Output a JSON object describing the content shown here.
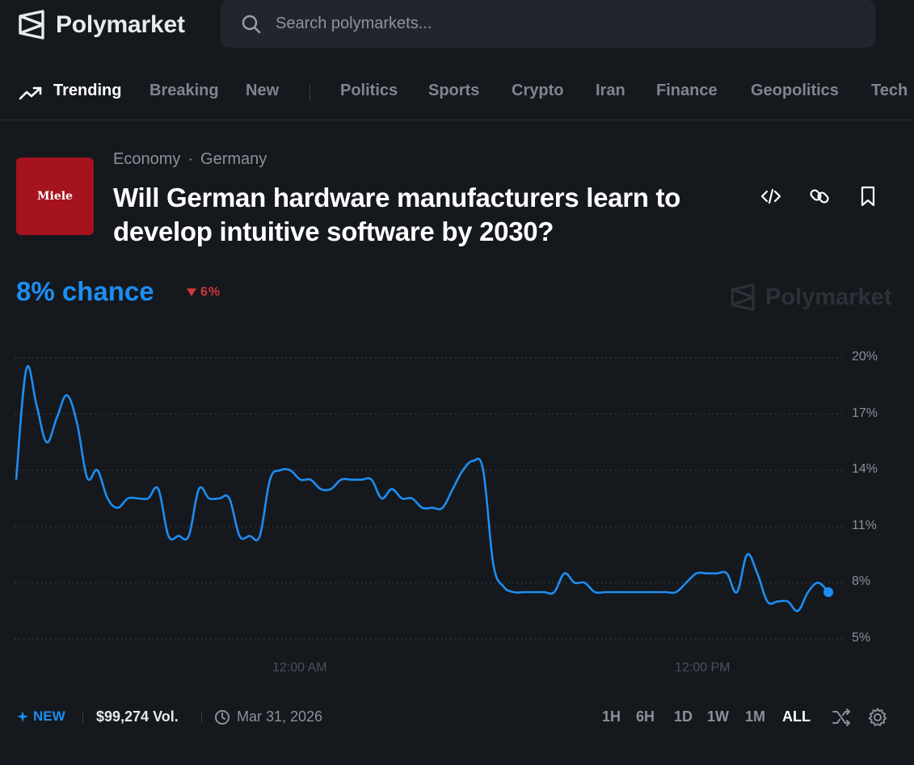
{
  "brand": {
    "name": "Polymarket"
  },
  "search": {
    "placeholder": "Search polymarkets..."
  },
  "nav": {
    "items": [
      {
        "label": "Trending",
        "active": true
      },
      {
        "label": "Breaking"
      },
      {
        "label": "New"
      },
      {
        "label": "Politics"
      },
      {
        "label": "Sports"
      },
      {
        "label": "Crypto"
      },
      {
        "label": "Iran"
      },
      {
        "label": "Finance"
      },
      {
        "label": "Geopolitics"
      },
      {
        "label": "Tech"
      }
    ]
  },
  "market": {
    "thumbnail_text": "Miele",
    "breadcrumbs": [
      "Economy",
      "·",
      "Germany"
    ],
    "title": "Will German hardware manufacturers learn to develop intuitive software by 2030?",
    "chance": "8% chance",
    "delta": "6%",
    "watermark": "Polymarket",
    "tag": "NEW",
    "volume": "$99,274 Vol.",
    "end_date": "Mar 31, 2026"
  },
  "time_ranges": [
    "1H",
    "6H",
    "1D",
    "1W",
    "1M",
    "ALL"
  ],
  "active_range": "ALL",
  "icons": {
    "actions": [
      "code-embed-icon",
      "link-icon",
      "bookmark-icon"
    ],
    "footer": [
      "shuffle-icon",
      "settings-gear-icon"
    ]
  },
  "colors": {
    "accent": "#1c8ef2",
    "negative": "#d0363c",
    "background": "#15181d"
  },
  "chart_data": {
    "type": "line",
    "ylim": [
      5,
      20
    ],
    "yticks": [
      "20%",
      "17%",
      "14%",
      "11%",
      "8%",
      "5%"
    ],
    "ytick_values": [
      20,
      17,
      14,
      11,
      8,
      5
    ],
    "xticks": [
      "12:00 AM",
      "12:00 PM"
    ],
    "series": [
      {
        "values": [
          13.5,
          19.4,
          17.5,
          15.5,
          16.8,
          18.0,
          16.5,
          13.6,
          14.0,
          12.5,
          12.0,
          12.5,
          12.5,
          12.5,
          13.0,
          10.5,
          10.5,
          10.5,
          13.0,
          12.5,
          12.5,
          12.5,
          10.5,
          10.5,
          10.5,
          13.5,
          14.0,
          14.0,
          13.5,
          13.5,
          13.0,
          13.0,
          13.5,
          13.5,
          13.5,
          13.5,
          12.5,
          13.0,
          12.5,
          12.5,
          12.0,
          12.0,
          12.0,
          13.0,
          14.0,
          14.5,
          14.0,
          9.0,
          7.8,
          7.5,
          7.5,
          7.5,
          7.5,
          7.5,
          8.5,
          8.0,
          8.0,
          7.5,
          7.5,
          7.5,
          7.5,
          7.5,
          7.5,
          7.5,
          7.5,
          7.5,
          8.0,
          8.5,
          8.5,
          8.5,
          8.5,
          7.5,
          9.5,
          8.5,
          7.0,
          7.0,
          7.0,
          6.5,
          7.5,
          8.0,
          7.5
        ]
      }
    ]
  }
}
